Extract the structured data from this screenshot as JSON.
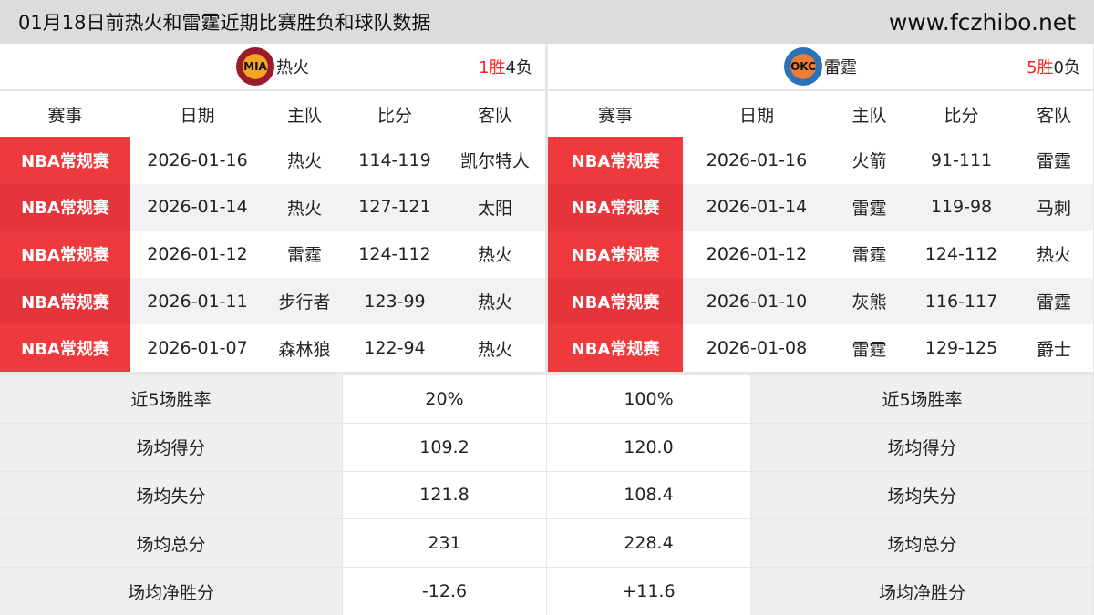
{
  "header": {
    "title": "01月18日前热火和雷霆近期比赛胜负和球队数据",
    "site": "www.fczhibo.net"
  },
  "columns": [
    "赛事",
    "日期",
    "主队",
    "比分",
    "客队"
  ],
  "left": {
    "team": "热火",
    "logo_text": "MIA",
    "record_wins": "1胜",
    "record_losses": "4负",
    "logo_colors": [
      "#9a1b2b",
      "#f5a623"
    ],
    "games": [
      {
        "event": "NBA常规赛",
        "date": "2026-01-16",
        "home": "热火",
        "score": "114-119",
        "away": "凯尔特人"
      },
      {
        "event": "NBA常规赛",
        "date": "2026-01-14",
        "home": "热火",
        "score": "127-121",
        "away": "太阳"
      },
      {
        "event": "NBA常规赛",
        "date": "2026-01-12",
        "home": "雷霆",
        "score": "124-112",
        "away": "热火"
      },
      {
        "event": "NBA常规赛",
        "date": "2026-01-11",
        "home": "步行者",
        "score": "123-99",
        "away": "热火"
      },
      {
        "event": "NBA常规赛",
        "date": "2026-01-07",
        "home": "森林狼",
        "score": "122-94",
        "away": "热火"
      }
    ]
  },
  "right": {
    "team": "雷霆",
    "logo_text": "OKC",
    "record_wins": "5胜",
    "record_losses": "0负",
    "logo_colors": [
      "#2b72b8",
      "#f07c34"
    ],
    "games": [
      {
        "event": "NBA常规赛",
        "date": "2026-01-16",
        "home": "火箭",
        "score": "91-111",
        "away": "雷霆"
      },
      {
        "event": "NBA常规赛",
        "date": "2026-01-14",
        "home": "雷霆",
        "score": "119-98",
        "away": "马刺"
      },
      {
        "event": "NBA常规赛",
        "date": "2026-01-12",
        "home": "雷霆",
        "score": "124-112",
        "away": "热火"
      },
      {
        "event": "NBA常规赛",
        "date": "2026-01-10",
        "home": "灰熊",
        "score": "116-117",
        "away": "雷霆"
      },
      {
        "event": "NBA常规赛",
        "date": "2026-01-08",
        "home": "雷霆",
        "score": "129-125",
        "away": "爵士"
      }
    ]
  },
  "stats": [
    {
      "label": "近5场胜率",
      "left": "20%",
      "right": "100%"
    },
    {
      "label": "场均得分",
      "left": "109.2",
      "right": "120.0"
    },
    {
      "label": "场均失分",
      "left": "121.8",
      "right": "108.4"
    },
    {
      "label": "场均总分",
      "left": "231",
      "right": "228.4"
    },
    {
      "label": "场均净胜分",
      "left": "-12.6",
      "right": "+11.6"
    }
  ],
  "colors": {
    "event_red": "#ee3a3d",
    "win_red": "#ff2222"
  }
}
